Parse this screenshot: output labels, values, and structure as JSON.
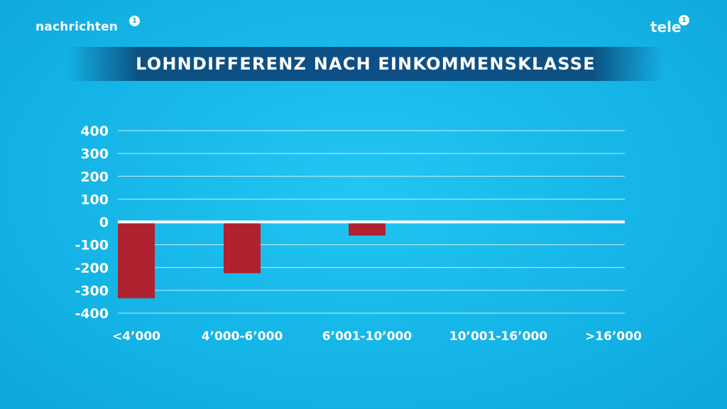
{
  "header": {
    "brand_left": "nachrichten",
    "brand_left_badge": "1",
    "brand_right": "tele",
    "brand_right_badge": "1"
  },
  "title": "LOHNDIFFERENZ NACH EINKOMMENSKLASSE",
  "colors": {
    "background": "#14b4e6",
    "title_bar": "#0d4f86",
    "bar": "#b0222f",
    "text": "#ffffff"
  },
  "chart_data": {
    "type": "bar",
    "title": "LOHNDIFFERENZ NACH EINKOMMENSKLASSE",
    "categories": [
      "<4’000",
      "4’000-6’000",
      "6’001-10’000",
      "10’001-16’000",
      ">16’000"
    ],
    "values": [
      -335,
      -225,
      -60,
      0,
      0
    ],
    "ylim": [
      -400,
      400
    ],
    "yticks": [
      400,
      300,
      200,
      100,
      0,
      -100,
      -200,
      -300,
      -400
    ],
    "ytick_labels": [
      "400",
      "300",
      "200",
      "100",
      "0",
      "-100",
      "-200",
      "-300",
      "-400"
    ],
    "xlabel": "",
    "ylabel": "",
    "grid": true,
    "legend": "none"
  }
}
